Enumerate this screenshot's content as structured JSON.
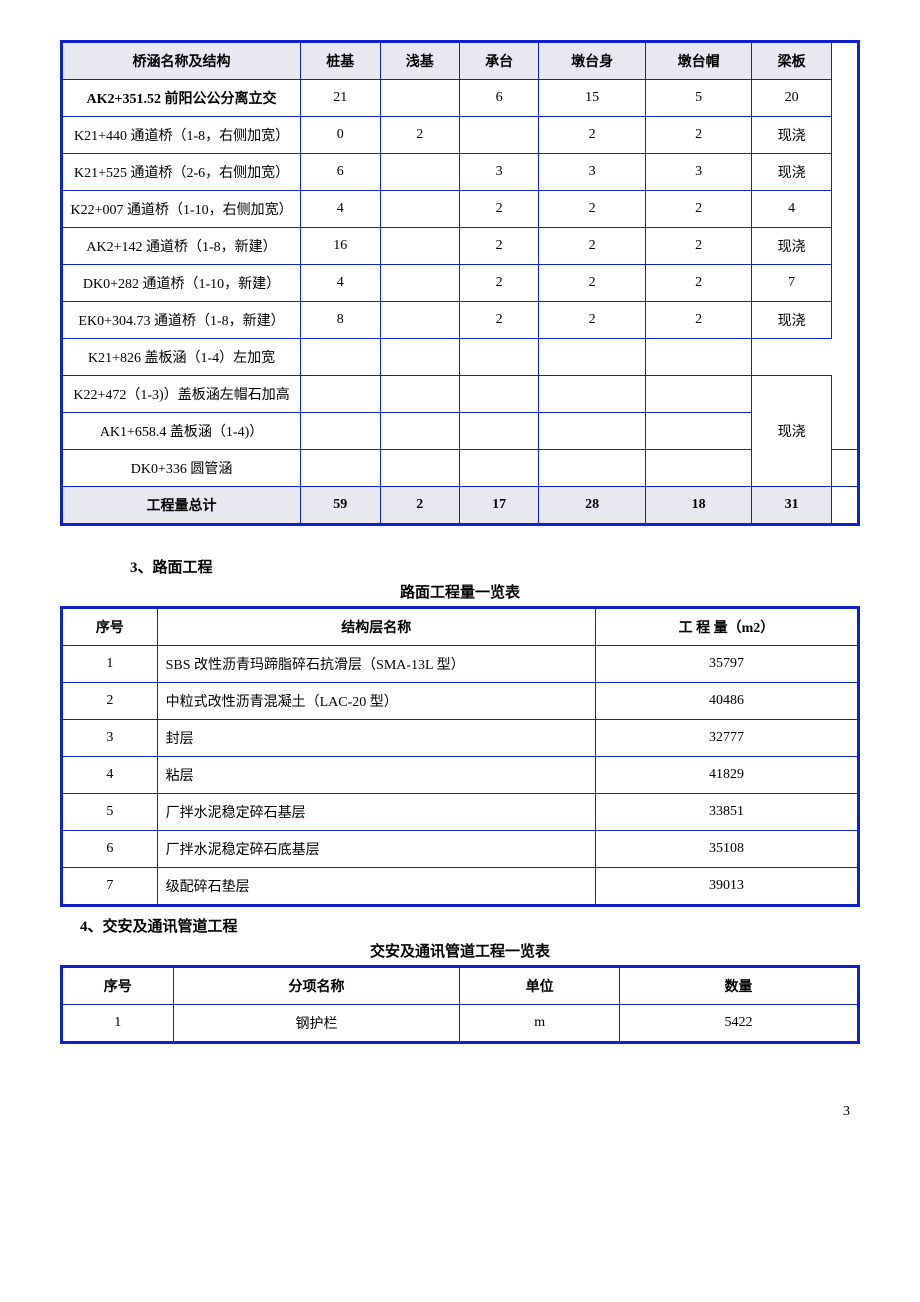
{
  "table1": {
    "headers": [
      "桥涵名称及结构",
      "桩基",
      "浅基",
      "承台",
      "墩台身",
      "墩台帽",
      "梁板"
    ],
    "rows": [
      {
        "name": "AK2+351.52 前阳公公分离立交",
        "v": [
          "21",
          "",
          "6",
          "15",
          "5",
          "20"
        ],
        "bold_name": true
      },
      {
        "name": "K21+440 通道桥（1-8，右侧加宽）",
        "v": [
          "0",
          "2",
          "",
          "2",
          "2",
          "现浇"
        ]
      },
      {
        "name": "K21+525 通道桥（2-6，右侧加宽）",
        "v": [
          "6",
          "",
          "3",
          "3",
          "3",
          "现浇"
        ]
      },
      {
        "name": "K22+007 通道桥（1-10，右侧加宽）",
        "v": [
          "4",
          "",
          "2",
          "2",
          "2",
          "4"
        ]
      },
      {
        "name": "AK2+142 通道桥（1-8，新建）",
        "v": [
          "16",
          "",
          "2",
          "2",
          "2",
          "现浇"
        ]
      },
      {
        "name": "DK0+282 通道桥（1-10，新建）",
        "v": [
          "4",
          "",
          "2",
          "2",
          "2",
          "7"
        ]
      },
      {
        "name": "EK0+304.73 通道桥（1-8，新建）",
        "v": [
          "8",
          "",
          "2",
          "2",
          "2",
          "现浇"
        ]
      },
      {
        "name": "K21+826 盖板涵（1-4）左加宽",
        "v": [
          "",
          "",
          "",
          "",
          "",
          ""
        ],
        "no_last": true
      },
      {
        "name": "K22+472（1-3)）盖板涵左帽石加高",
        "v": [
          "",
          "",
          "",
          "",
          "",
          "现浇"
        ],
        "span_last": 3
      },
      {
        "name": "AK1+658.4 盖板涵（1-4)）",
        "v": [
          "",
          "",
          "",
          "",
          "",
          ""
        ],
        "no_last": true
      },
      {
        "name": "DK0+336 圆管涵",
        "v": [
          "",
          "",
          "",
          "",
          "",
          ""
        ]
      }
    ],
    "total": {
      "label": "工程量总计",
      "v": [
        "59",
        "2",
        "17",
        "28",
        "18",
        "31"
      ]
    }
  },
  "section3": {
    "heading": "3、路面工程",
    "caption": "路面工程量一览表",
    "headers": [
      "序号",
      "结构层名称",
      "工 程 量（m2）"
    ],
    "rows": [
      {
        "n": "1",
        "name": "SBS 改性沥青玛蹄脂碎石抗滑层（SMA-13L 型）",
        "q": "35797"
      },
      {
        "n": "2",
        "name": "中粒式改性沥青混凝土（LAC-20 型）",
        "q": "40486"
      },
      {
        "n": "3",
        "name": "封层",
        "q": "32777"
      },
      {
        "n": "4",
        "name": "粘层",
        "q": "41829"
      },
      {
        "n": "5",
        "name": "厂拌水泥稳定碎石基层",
        "q": "33851"
      },
      {
        "n": "6",
        "name": "厂拌水泥稳定碎石底基层",
        "q": "35108"
      },
      {
        "n": "7",
        "name": "级配碎石垫层",
        "q": "39013"
      }
    ]
  },
  "section4": {
    "heading": "4、交安及通讯管道工程",
    "caption": "交安及通讯管道工程一览表",
    "headers": [
      "序号",
      "分项名称",
      "单位",
      "数量"
    ],
    "rows": [
      {
        "n": "1",
        "name": "钢护栏",
        "unit": "m",
        "q": "5422"
      }
    ]
  },
  "page_number": "3"
}
